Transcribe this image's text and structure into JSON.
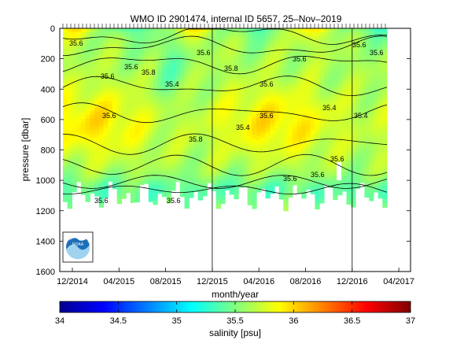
{
  "chart_data": {
    "type": "heatmap",
    "title": "WMO ID 2901474, internal ID 5657, 25–Nov–2019",
    "xlabel": "month/year",
    "ylabel": "pressure [dbar]",
    "x_ticks": [
      "12/2014",
      "04/2015",
      "08/2015",
      "12/2015",
      "04/2016",
      "08/2016",
      "12/2016",
      "04/2017"
    ],
    "x_range": [
      "2014-12",
      "2017-05"
    ],
    "y_ticks": [
      0,
      200,
      400,
      600,
      800,
      1000,
      1200,
      1400,
      1600
    ],
    "ylim": [
      1600,
      0
    ],
    "y_reversed": true,
    "contour_label_value": "35.6",
    "contour_labels_secondary": [
      "35.4",
      "35.8"
    ],
    "profile_end_depth_dbar": 1100,
    "colorbar": {
      "label": "salinity [psu]",
      "ticks": [
        34,
        34.5,
        35,
        35.5,
        36,
        36.5,
        37
      ],
      "range": [
        34,
        37
      ],
      "colormap": "jet",
      "colors": [
        "#00008f",
        "#0000ff",
        "#0080ff",
        "#00ffff",
        "#80ff80",
        "#ffff00",
        "#ff8000",
        "#ff0000",
        "#800000"
      ]
    },
    "vertical_markers": [
      "12/2015",
      "12/2016"
    ],
    "logo": "NOAA"
  }
}
